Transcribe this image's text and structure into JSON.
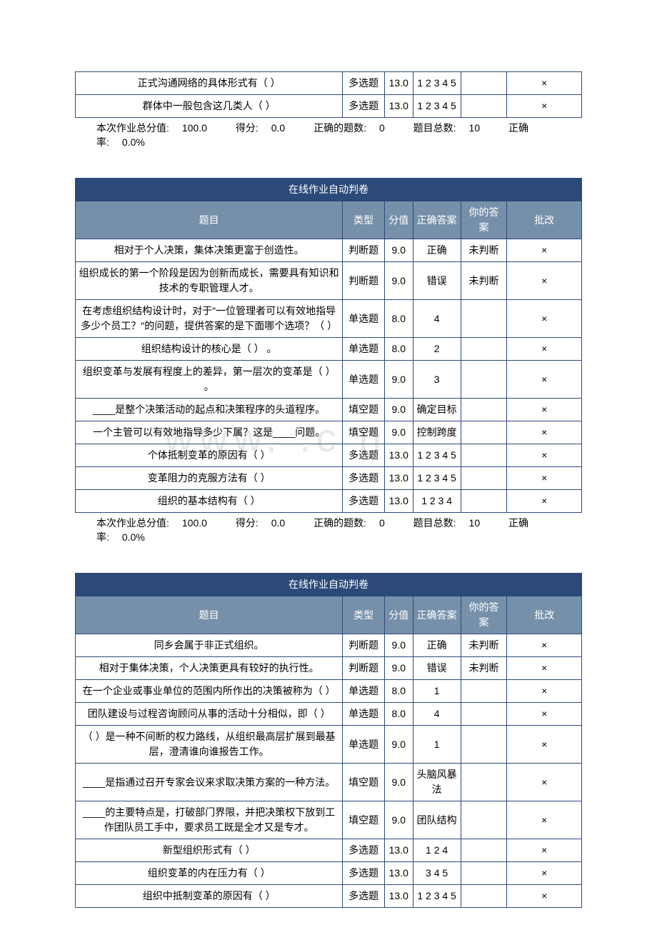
{
  "colors": {
    "border": "#2b4a7a",
    "title_bg": "#2b4a7a",
    "header_bg": "#7790aa",
    "text": "#000000",
    "white": "#ffffff",
    "watermark": "#e8e8e8"
  },
  "watermark_text": "www.    .c   n",
  "headers": {
    "title": "在线作业自动判卷",
    "question": "题目",
    "type": "类型",
    "score": "分值",
    "correct": "正确答案",
    "your": "你的答案",
    "mark": "批改"
  },
  "summary_labels": {
    "total_score": "本次作业总分值:",
    "got_score": "得分:",
    "correct_count": "正确的题数:",
    "total_count": "题目总数:",
    "rate": "正确率:"
  },
  "frag_table": {
    "rows": [
      {
        "q": "正式沟通网络的具体形式有（ ）",
        "type": "多选题",
        "score": "13.0",
        "correct": "1 2 3 4 5",
        "your": "",
        "mark": "×"
      },
      {
        "q": "群体中一般包含这几类人（ ）",
        "type": "多选题",
        "score": "13.0",
        "correct": "1 2 3 4 5",
        "your": "",
        "mark": "×"
      }
    ],
    "summary": {
      "total": "100.0",
      "got": "0.0",
      "correct_n": "0",
      "total_n": "10",
      "rate": "0.0%"
    }
  },
  "table2": {
    "rows": [
      {
        "q": "相对于个人决策，集体决策更富于创造性。",
        "type": "判断题",
        "score": "9.0",
        "correct": "正确",
        "your": "未判断",
        "mark": "×"
      },
      {
        "q": "组织成长的第一个阶段是因为创新而成长，需要具有知识和技术的专职管理人才。",
        "type": "判断题",
        "score": "9.0",
        "correct": "错误",
        "your": "未判断",
        "mark": "×"
      },
      {
        "q": "在考虑组织结构设计时，对于\"一位管理者可以有效地指导多少个员工？\"的问题，提供答案的是下面哪个选项？（ ）",
        "type": "单选题",
        "score": "8.0",
        "correct": "4",
        "your": "",
        "mark": "×"
      },
      {
        "q": "组织结构设计的核心是（ ） 。",
        "type": "单选题",
        "score": "8.0",
        "correct": "2",
        "your": "",
        "mark": "×"
      },
      {
        "q": "组织变革与发展有程度上的差异，第一层次的变革是（ ） 。",
        "type": "单选题",
        "score": "9.0",
        "correct": "3",
        "your": "",
        "mark": "×"
      },
      {
        "q": "____是整个决策活动的起点和决策程序的头道程序。",
        "type": "填空题",
        "score": "9.0",
        "correct": "确定目标",
        "your": "",
        "mark": "×"
      },
      {
        "q": "一个主管可以有效地指导多少下属？这是____问题。",
        "type": "填空题",
        "score": "9.0",
        "correct": "控制跨度",
        "your": "",
        "mark": "×"
      },
      {
        "q": "个体抵制变革的原因有（ ）",
        "type": "多选题",
        "score": "13.0",
        "correct": "1 2 3 4 5",
        "your": "",
        "mark": "×"
      },
      {
        "q": "变革阻力的克服方法有（ ）",
        "type": "多选题",
        "score": "13.0",
        "correct": "1 2 3 4 5",
        "your": "",
        "mark": "×"
      },
      {
        "q": "组织的基本结构有（ ）",
        "type": "多选题",
        "score": "13.0",
        "correct": "1 2 3 4",
        "your": "",
        "mark": "×"
      }
    ],
    "summary": {
      "total": "100.0",
      "got": "0.0",
      "correct_n": "0",
      "total_n": "10",
      "rate": "0.0%"
    }
  },
  "table3": {
    "rows": [
      {
        "q": "同乡会属于非正式组织。",
        "type": "判断题",
        "score": "9.0",
        "correct": "正确",
        "your": "未判断",
        "mark": "×"
      },
      {
        "q": "相对于集体决策，个人决策更具有较好的执行性。",
        "type": "判断题",
        "score": "9.0",
        "correct": "错误",
        "your": "未判断",
        "mark": "×"
      },
      {
        "q": "在一个企业或事业单位的范围内所作出的决策被称为（  ）",
        "type": "单选题",
        "score": "8.0",
        "correct": "1",
        "your": "",
        "mark": "×"
      },
      {
        "q": "团队建设与过程咨询顾问从事的活动十分相似，即（ ）",
        "type": "单选题",
        "score": "8.0",
        "correct": "4",
        "your": "",
        "mark": "×"
      },
      {
        "q": "（ ）是一种不间断的权力路线，从组织最高层扩展到最基层，澄清谁向谁报告工作。",
        "type": "单选题",
        "score": "9.0",
        "correct": "1",
        "your": "",
        "mark": "×"
      },
      {
        "q": "____是指通过召开专家会议来求取决策方案的一种方法。",
        "type": "填空题",
        "score": "9.0",
        "correct": "头脑风暴法",
        "your": "",
        "mark": "×"
      },
      {
        "q": "____的主要特点是，打破部门界限，并把决策权下放到工作团队员工手中，要求员工既是全才又是专才。",
        "type": "填空题",
        "score": "9.0",
        "correct": "团队结构",
        "your": "",
        "mark": "×"
      },
      {
        "q": "新型组织形式有（ ）",
        "type": "多选题",
        "score": "13.0",
        "correct": "1 2 4",
        "your": "",
        "mark": "×"
      },
      {
        "q": "组织变革的内在压力有（ ）",
        "type": "多选题",
        "score": "13.0",
        "correct": "3 4 5",
        "your": "",
        "mark": "×"
      },
      {
        "q": "组织中抵制变革的原因有（ ）",
        "type": "多选题",
        "score": "13.0",
        "correct": "1 2 3 4 5",
        "your": "",
        "mark": "×"
      }
    ]
  }
}
